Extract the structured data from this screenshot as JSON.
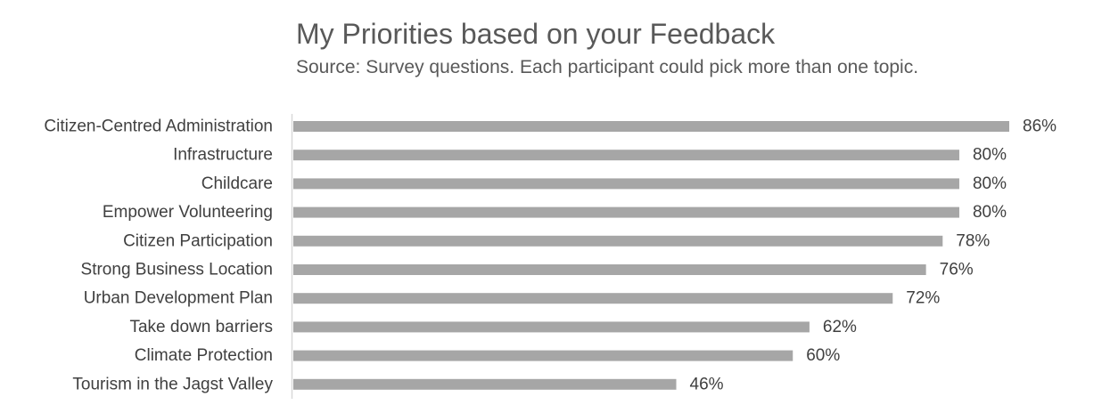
{
  "chart_data": {
    "type": "bar",
    "orientation": "horizontal",
    "title": "My Priorities based on your Feedback",
    "subtitle": "Source: Survey questions. Each participant could pick more than one topic.",
    "categories": [
      "Citizen-Centred Administration",
      "Infrastructure",
      "Childcare",
      "Empower Volunteering",
      "Citizen Participation",
      "Strong Business Location",
      "Urban Development Plan",
      "Take down barriers",
      "Climate Protection",
      "Tourism in the Jagst Valley"
    ],
    "values": [
      86,
      80,
      80,
      80,
      78,
      76,
      72,
      62,
      60,
      46
    ],
    "value_labels": [
      "86%",
      "80%",
      "80%",
      "80%",
      "78%",
      "76%",
      "72%",
      "62%",
      "60%",
      "46%"
    ],
    "unit": "%",
    "xlim": [
      0,
      86
    ],
    "grid": false,
    "legend": "none",
    "bar_color": "#a6a6a6",
    "axis_color": "#d9d9d9"
  }
}
